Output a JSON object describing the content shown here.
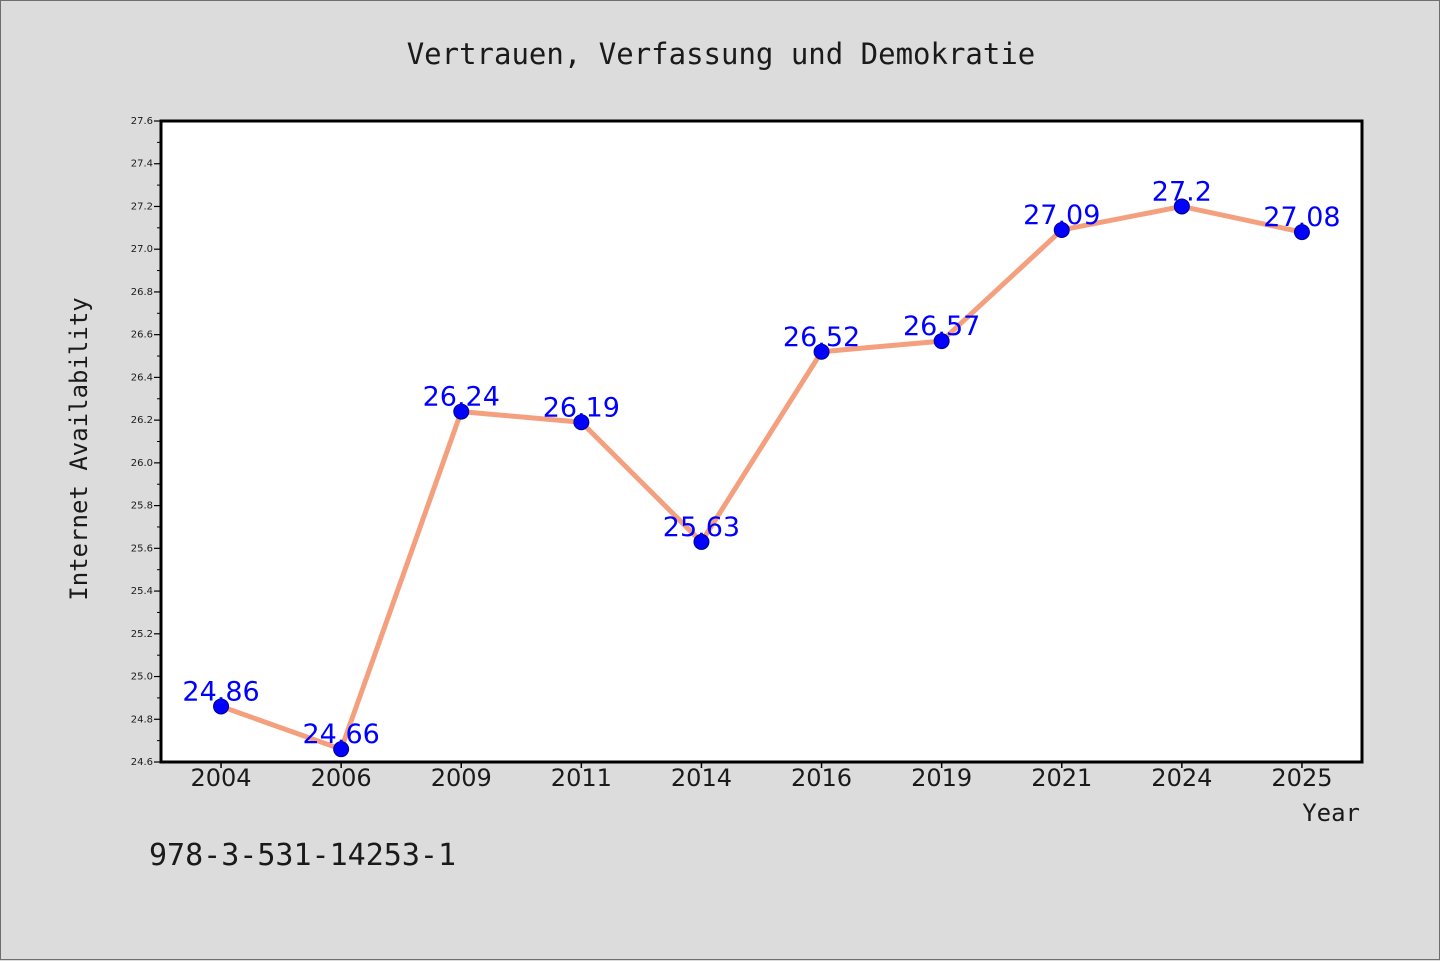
{
  "caption": "978-3-531-14253-1",
  "chart_data": {
    "type": "line",
    "title": "Vertrauen, Verfassung und Demokratie",
    "xlabel": "Year",
    "ylabel": "Internet Availability",
    "categories": [
      "2004",
      "2006",
      "2009",
      "2011",
      "2014",
      "2016",
      "2019",
      "2021",
      "2024",
      "2025"
    ],
    "series": [
      {
        "values": [
          24.86,
          24.66,
          26.24,
          26.19,
          25.63,
          26.52,
          26.57,
          27.09,
          27.2,
          27.08
        ],
        "labels": [
          "24.86",
          "24.66",
          "26.24",
          "26.19",
          "25.63",
          "26.52",
          "26.57",
          "27.09",
          "27.2",
          "27.08"
        ]
      }
    ],
    "ylim": [
      24.6,
      27.6
    ],
    "yticks": [
      "24.6",
      "24.8",
      "25.0",
      "25.2",
      "25.4",
      "25.6",
      "25.8",
      "26.0",
      "26.2",
      "26.4",
      "26.6",
      "26.8",
      "27.0",
      "27.2",
      "27.4",
      "27.6"
    ],
    "grid": false,
    "legend": "none",
    "colors": {
      "line": "#f4a07e",
      "marker": "#0000ff",
      "label": "#0000ff",
      "background": "#dcdcdc",
      "plot_background": "#ffffff"
    }
  }
}
